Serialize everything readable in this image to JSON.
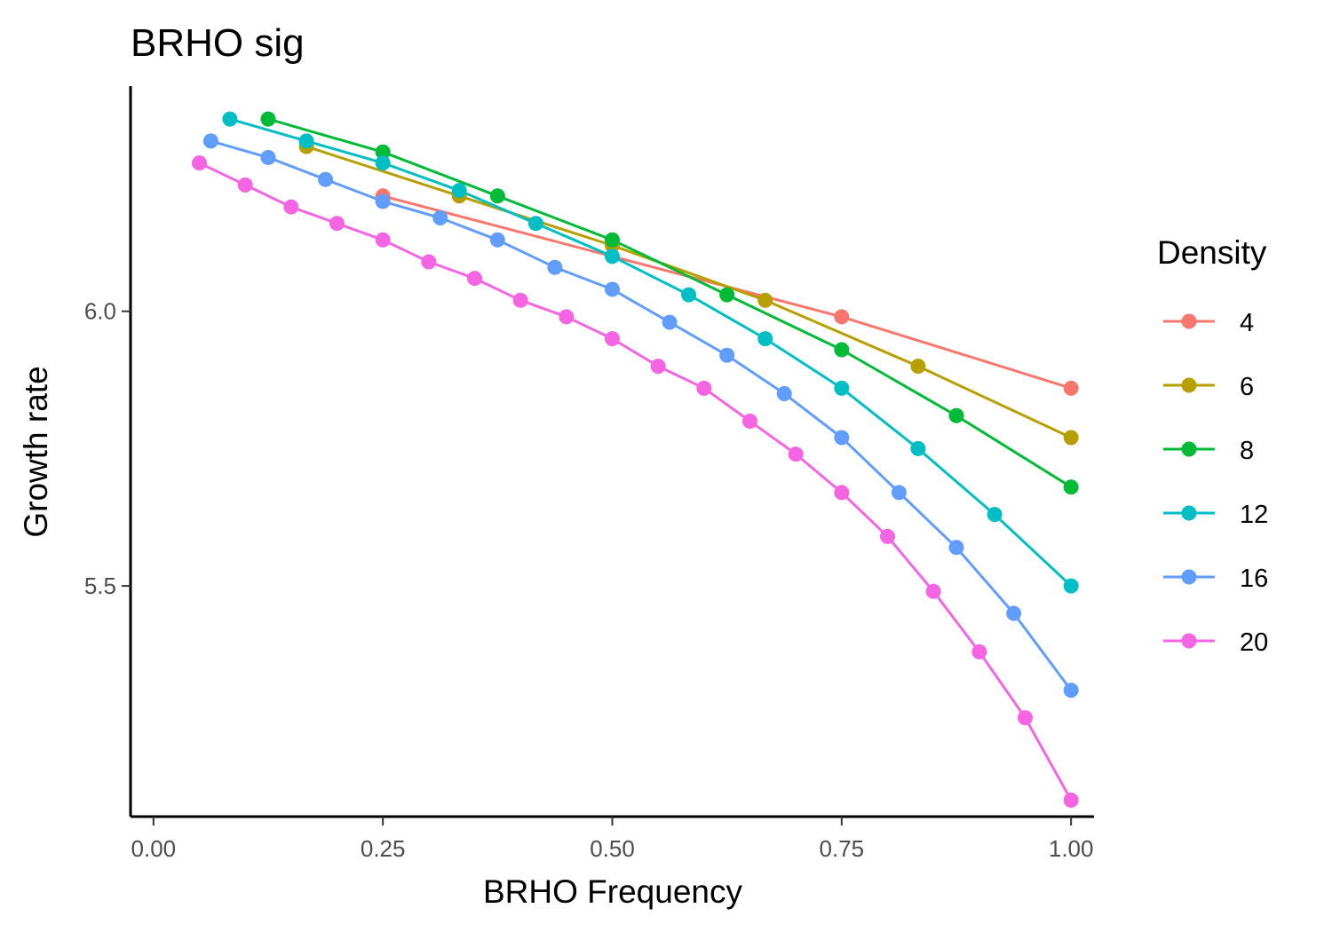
{
  "chart_data": {
    "type": "line",
    "title": "BRHO sig",
    "xlabel": "BRHO Frequency",
    "ylabel": "Growth rate",
    "xlim": [
      -0.025,
      1.025
    ],
    "ylim": [
      5.08,
      6.41
    ],
    "x_ticks": [
      0,
      0.25,
      0.5,
      0.75,
      1
    ],
    "x_tick_labels": [
      "0.00",
      "0.25",
      "0.50",
      "0.75",
      "1.00"
    ],
    "y_ticks": [
      5.5,
      6.0
    ],
    "y_tick_labels": [
      "5.5",
      "6.0"
    ],
    "grid": false,
    "legend": {
      "title": "Density",
      "position": "right"
    },
    "series": [
      {
        "name": "4",
        "color": "#F8766D",
        "x": [
          0.25,
          0.75,
          1.0
        ],
        "y": [
          6.21,
          5.99,
          5.86
        ]
      },
      {
        "name": "6",
        "color": "#B79F00",
        "x": [
          0.1667,
          0.3333,
          0.5,
          0.6667,
          0.8333,
          1.0
        ],
        "y": [
          6.3,
          6.21,
          6.12,
          6.02,
          5.9,
          5.77
        ]
      },
      {
        "name": "8",
        "color": "#00BA38",
        "x": [
          0.125,
          0.25,
          0.375,
          0.5,
          0.625,
          0.75,
          0.875,
          1.0
        ],
        "y": [
          6.35,
          6.29,
          6.21,
          6.13,
          6.03,
          5.93,
          5.81,
          5.68
        ]
      },
      {
        "name": "12",
        "color": "#00BFC4",
        "x": [
          0.0833,
          0.1667,
          0.25,
          0.3333,
          0.4167,
          0.5,
          0.5833,
          0.6667,
          0.75,
          0.8333,
          0.9167,
          1.0
        ],
        "y": [
          6.35,
          6.31,
          6.27,
          6.22,
          6.16,
          6.1,
          6.03,
          5.95,
          5.86,
          5.75,
          5.63,
          5.5
        ]
      },
      {
        "name": "16",
        "color": "#619CFF",
        "x": [
          0.0625,
          0.125,
          0.1875,
          0.25,
          0.3125,
          0.375,
          0.4375,
          0.5,
          0.5625,
          0.625,
          0.6875,
          0.75,
          0.8125,
          0.875,
          0.9375,
          1.0
        ],
        "y": [
          6.31,
          6.28,
          6.24,
          6.2,
          6.17,
          6.13,
          6.08,
          6.04,
          5.98,
          5.92,
          5.85,
          5.77,
          5.67,
          5.57,
          5.45,
          5.31
        ]
      },
      {
        "name": "20",
        "color": "#F564E3",
        "x": [
          0.05,
          0.1,
          0.15,
          0.2,
          0.25,
          0.3,
          0.35,
          0.4,
          0.45,
          0.5,
          0.55,
          0.6,
          0.65,
          0.7,
          0.75,
          0.8,
          0.85,
          0.9,
          0.95,
          1.0
        ],
        "y": [
          6.27,
          6.23,
          6.19,
          6.16,
          6.13,
          6.09,
          6.06,
          6.02,
          5.99,
          5.95,
          5.9,
          5.86,
          5.8,
          5.74,
          5.67,
          5.59,
          5.49,
          5.38,
          5.26,
          5.11
        ]
      }
    ]
  }
}
